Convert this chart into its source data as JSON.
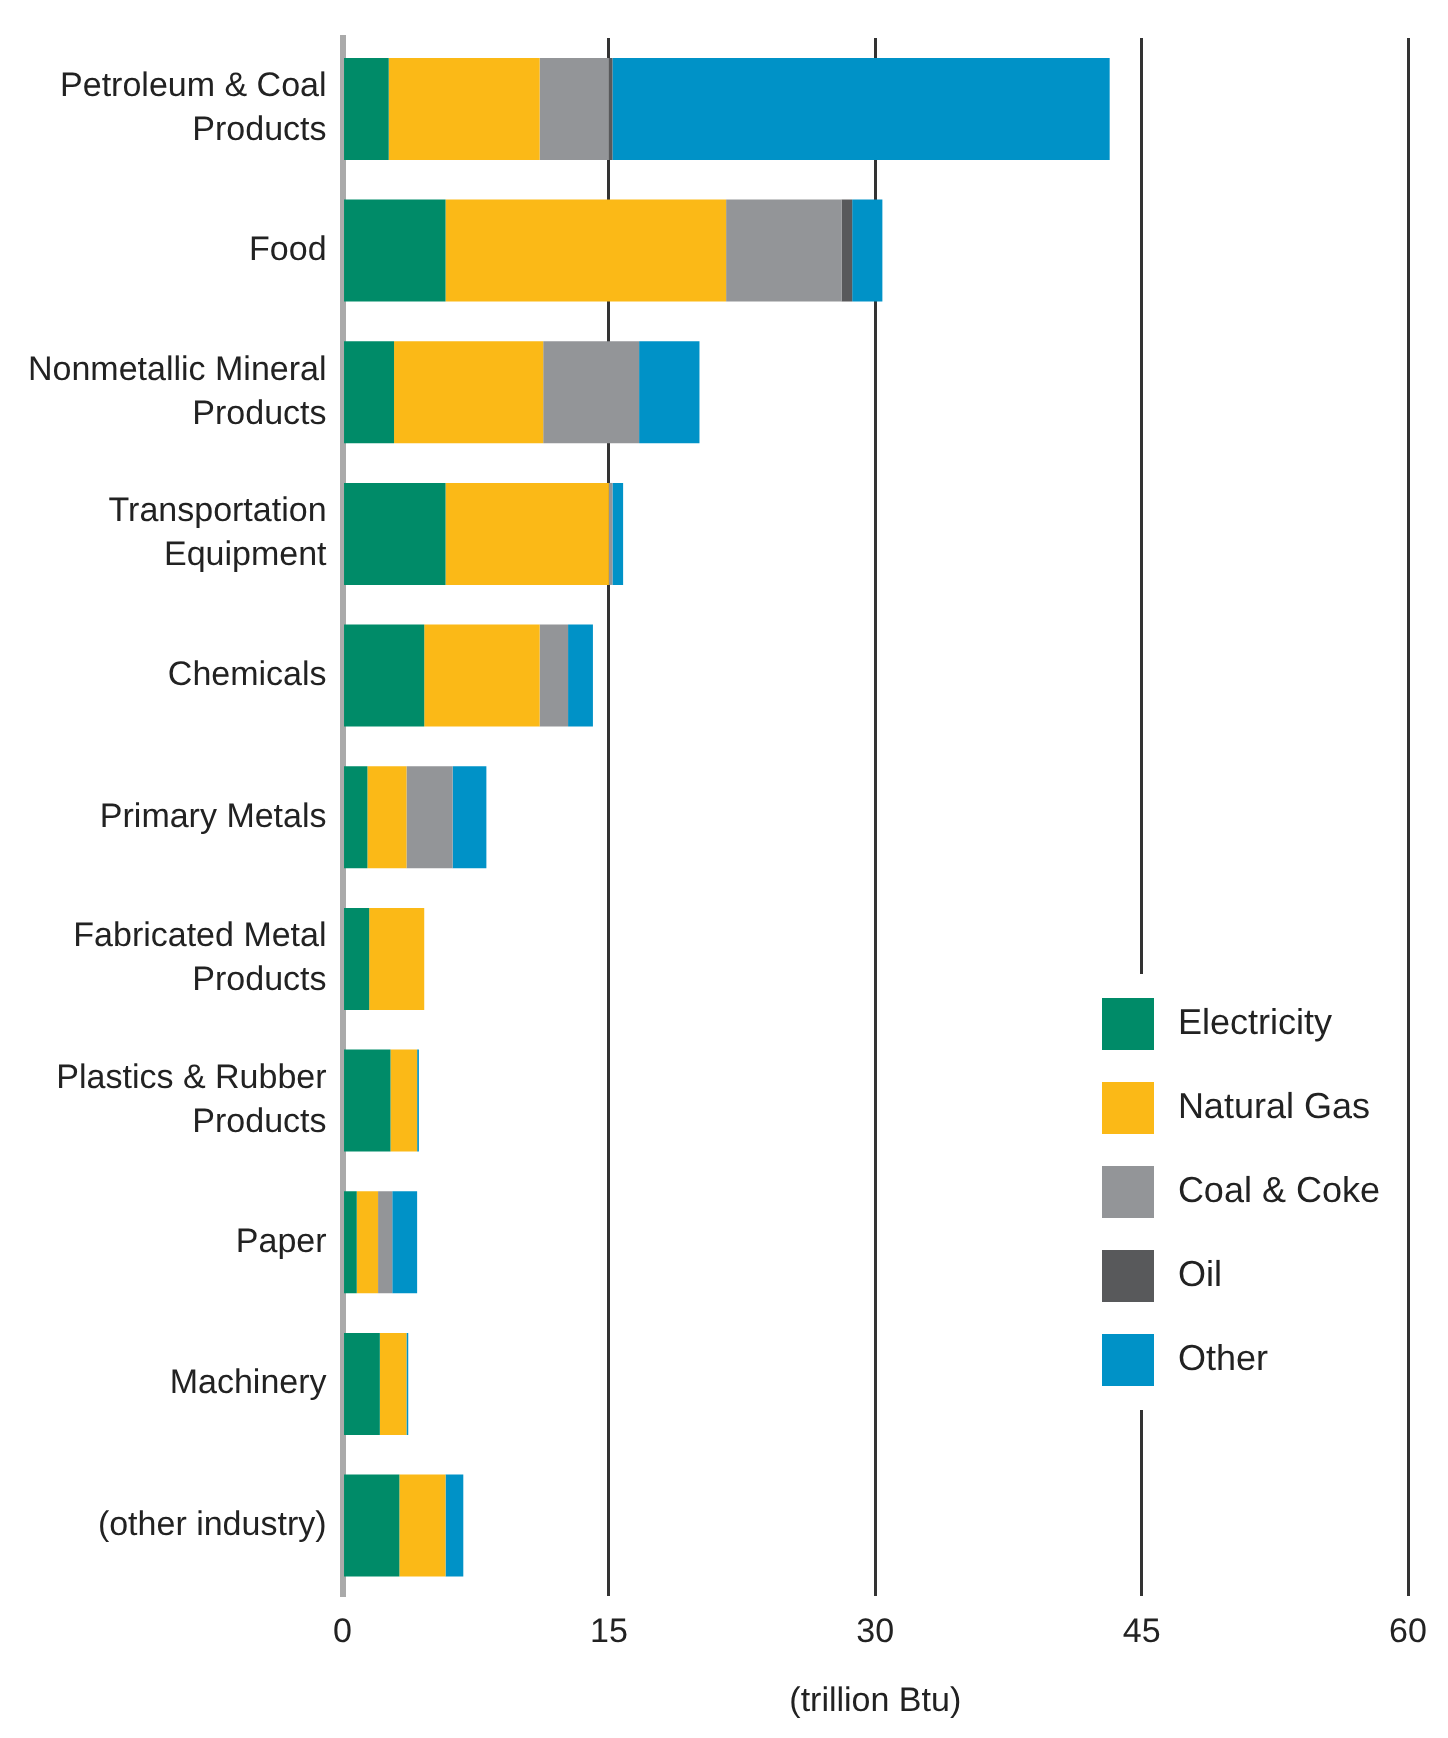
{
  "chart_data": {
    "type": "bar",
    "orientation": "horizontal",
    "stacked": true,
    "categories": [
      "Petroleum & Coal Products",
      "Food",
      "Nonmetallic Mineral Products",
      "Transportation Equipment",
      "Chemicals",
      "Primary Metals",
      "Fabricated Metal Products",
      "Plastics & Rubber Products",
      "Paper",
      "Machinery",
      "(other industry)"
    ],
    "series": [
      {
        "name": "Electricity",
        "color": "#008b68",
        "values": [
          2.6,
          5.8,
          2.9,
          5.8,
          4.6,
          1.4,
          1.5,
          2.7,
          0.8,
          2.1,
          3.2
        ]
      },
      {
        "name": "Natural Gas",
        "color": "#fbb917",
        "values": [
          8.5,
          15.8,
          8.4,
          9.2,
          6.5,
          2.2,
          3.1,
          1.5,
          1.2,
          1.5,
          2.6
        ]
      },
      {
        "name": "Coal & Coke",
        "color": "#939598",
        "values": [
          3.9,
          6.5,
          5.4,
          0.2,
          1.6,
          2.6,
          null,
          null,
          0.8,
          null,
          null
        ]
      },
      {
        "name": "Oil",
        "color": "#58595b",
        "values": [
          0.2,
          0.6,
          null,
          null,
          null,
          null,
          null,
          null,
          null,
          null,
          null
        ]
      },
      {
        "name": "Other",
        "color": "#0092c7",
        "values": [
          28.0,
          1.7,
          3.4,
          0.6,
          1.4,
          1.9,
          null,
          0.1,
          1.4,
          0.1,
          1.0
        ]
      }
    ],
    "xlabel": "(trillion Btu)",
    "xlim": [
      0,
      60
    ],
    "xticks": [
      0,
      15,
      30,
      45,
      60
    ],
    "grid": "x",
    "legend": "right"
  }
}
